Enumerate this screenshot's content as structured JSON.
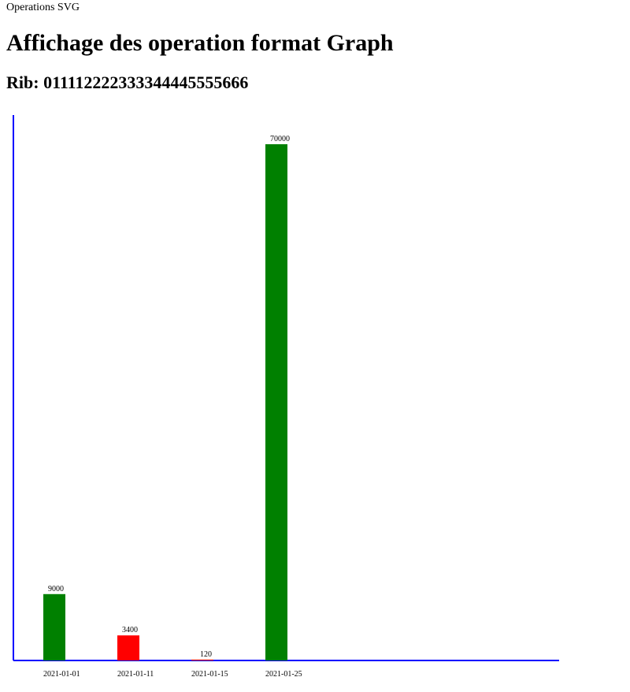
{
  "page": {
    "label": "Operations SVG",
    "title": "Affichage des operation format Graph",
    "rib_prefix": "Rib:",
    "rib_value": "011112222333344445555666"
  },
  "colors": {
    "axis": "#0000ff",
    "credit": "#008000",
    "debit": "#ff0000"
  },
  "chart_data": {
    "type": "bar",
    "categories": [
      "2021-01-01",
      "2021-01-11",
      "2021-01-15",
      "2021-01-25"
    ],
    "values": [
      9000,
      3400,
      120,
      70000
    ],
    "bar_colors": [
      "#008000",
      "#ff0000",
      "#ff0000",
      "#008000"
    ],
    "data_labels": [
      "9000",
      "3400",
      "120",
      "70000"
    ],
    "title": "",
    "xlabel": "",
    "ylabel": "",
    "ylim": [
      0,
      74000
    ],
    "grid": false,
    "legend": "none"
  }
}
